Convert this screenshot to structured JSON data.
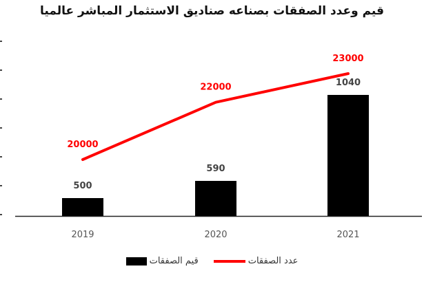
{
  "chart_data": {
    "type": "bar+line",
    "title": "قيم وعدد الصفقات بصناعه صناديق الاستثمار المباشر عالميا",
    "categories": [
      "2019",
      "2020",
      "2021"
    ],
    "series": [
      {
        "name": "قيم الصفقات",
        "type": "bar",
        "color": "#000000",
        "values": [
          500,
          590,
          1040
        ]
      },
      {
        "name": "عدد الصفقات",
        "type": "line",
        "color": "#ff0000",
        "values": [
          20000,
          22000,
          23000
        ]
      }
    ],
    "legend": "bottom",
    "grid": false
  }
}
